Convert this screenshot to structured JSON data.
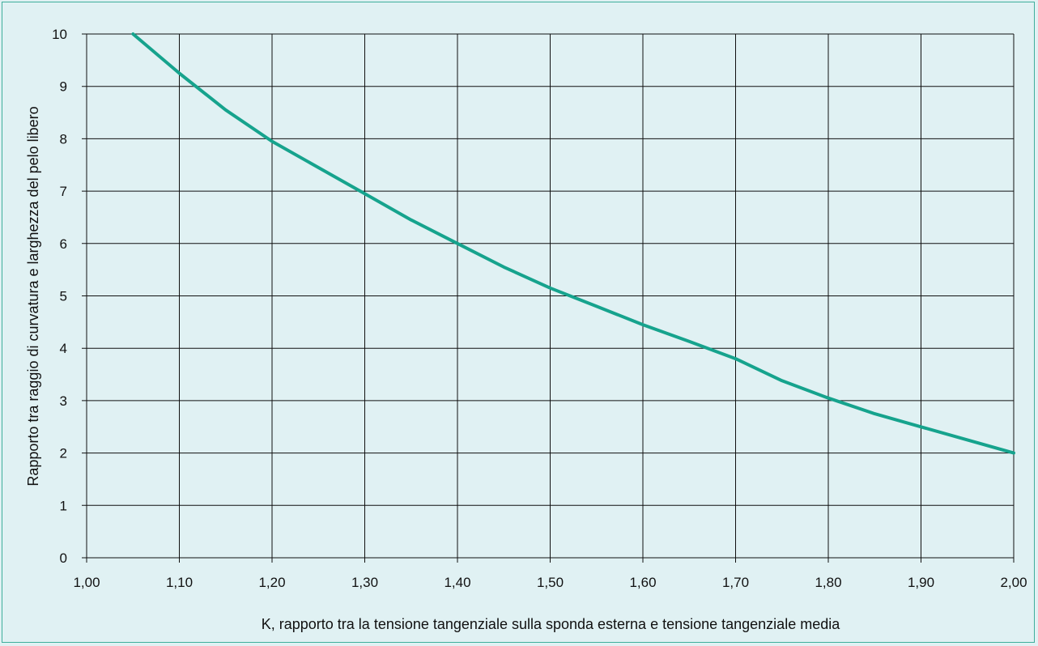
{
  "colors": {
    "background": "#e0f1f3",
    "border": "#3fae9b",
    "grid": "#111111",
    "line": "#16a38d"
  },
  "chart_data": {
    "type": "line",
    "title": "",
    "xlabel": "K, rapporto tra la tensione tangenziale sulla sponda esterna e tensione tangenziale media",
    "ylabel": "Rapporto tra raggio di curvatura e larghezza del pelo libero",
    "xlim": [
      1.0,
      2.0
    ],
    "ylim": [
      0,
      10
    ],
    "grid": true,
    "x_tick_labels": [
      "1,00",
      "1,10",
      "1,20",
      "1,30",
      "1,40",
      "1,50",
      "1,60",
      "1,70",
      "1,80",
      "1,90",
      "2,00"
    ],
    "y_tick_labels": [
      "0",
      "1",
      "2",
      "3",
      "4",
      "5",
      "6",
      "7",
      "8",
      "9",
      "10"
    ],
    "series": [
      {
        "x": [
          1.05,
          1.1,
          1.15,
          1.2,
          1.25,
          1.3,
          1.35,
          1.4,
          1.45,
          1.5,
          1.55,
          1.6,
          1.65,
          1.7,
          1.75,
          1.8,
          1.85,
          1.9,
          1.95,
          2.0
        ],
        "y": [
          10.0,
          9.25,
          8.55,
          7.95,
          7.45,
          6.95,
          6.45,
          6.0,
          5.55,
          5.15,
          4.8,
          4.45,
          4.13,
          3.8,
          3.38,
          3.05,
          2.75,
          2.5,
          2.25,
          2.0
        ]
      }
    ]
  }
}
